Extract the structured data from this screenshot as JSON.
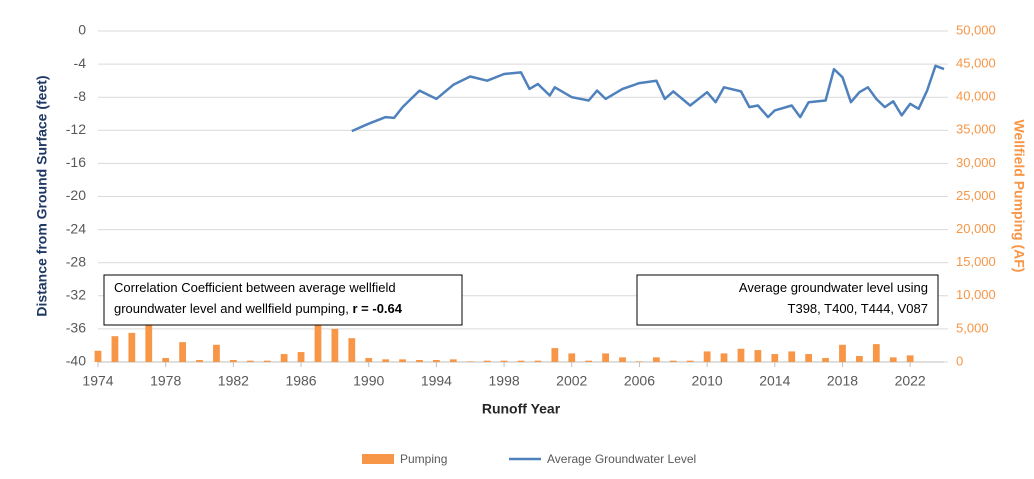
{
  "chart_data": {
    "type": "bar-line",
    "x_label": "Runoff Year",
    "y_label": "Distance from Ground Surface (feet)",
    "y2_label": "Wellfield Pumping (AF)",
    "xlim": [
      1974,
      2024
    ],
    "xticks": [
      1974,
      1978,
      1982,
      1986,
      1990,
      1994,
      1998,
      2002,
      2006,
      2010,
      2014,
      2018,
      2022
    ],
    "ylim": [
      -40,
      0
    ],
    "yticks": [
      0,
      -4,
      -8,
      -12,
      -16,
      -20,
      -24,
      -28,
      -32,
      -36,
      -40
    ],
    "y2lim": [
      0,
      50000
    ],
    "y2ticks": [
      0,
      {
        "value": 5000,
        "label": "5,000"
      },
      {
        "value": 10000,
        "label": "10,000"
      },
      {
        "value": 15000,
        "label": "15,000"
      },
      {
        "value": 20000,
        "label": "20,000"
      },
      {
        "value": 25000,
        "label": "25,000"
      },
      {
        "value": 30000,
        "label": "30,000"
      },
      {
        "value": 35000,
        "label": "35,000"
      },
      {
        "value": 40000,
        "label": "40,000"
      },
      {
        "value": 45000,
        "label": "45,000"
      },
      {
        "value": 50000,
        "label": "50,000"
      }
    ],
    "grid": true,
    "series": [
      {
        "name": "Pumping",
        "type": "bar",
        "axis": "y2",
        "color": "#f79646",
        "x": [
          1974,
          1975,
          1976,
          1977,
          1978,
          1979,
          1980,
          1981,
          1982,
          1983,
          1984,
          1985,
          1986,
          1987,
          1988,
          1989,
          1990,
          1991,
          1992,
          1993,
          1994,
          1995,
          1996,
          1997,
          1998,
          1999,
          2000,
          2001,
          2002,
          2003,
          2004,
          2005,
          2006,
          2007,
          2008,
          2009,
          2010,
          2011,
          2012,
          2013,
          2014,
          2015,
          2016,
          2017,
          2018,
          2019,
          2020,
          2021,
          2022
        ],
        "values": [
          1700,
          3900,
          4400,
          5600,
          600,
          3000,
          300,
          2600,
          300,
          200,
          200,
          1200,
          1500,
          6800,
          5000,
          3600,
          600,
          400,
          400,
          300,
          300,
          400,
          100,
          200,
          200,
          200,
          200,
          2100,
          1300,
          200,
          1300,
          700,
          100,
          700,
          200,
          200,
          1600,
          1300,
          2000,
          1800,
          1200,
          1600,
          1200,
          600,
          2600,
          900,
          2700,
          700,
          1000
        ]
      },
      {
        "name": "Average Groundwater Level",
        "type": "line",
        "color": "#4f81bd",
        "x": [
          1989,
          1990,
          1991,
          1991.5,
          1992,
          1993,
          1994,
          1995,
          1996,
          1997,
          1998,
          1999,
          1999.5,
          2000,
          2000.7,
          2001,
          2002,
          2003,
          2003.5,
          2004,
          2005,
          2006,
          2007,
          2007.5,
          2008,
          2009,
          2010,
          2010.5,
          2011,
          2012,
          2012.5,
          2013,
          2013.6,
          2014,
          2015,
          2015.5,
          2016,
          2017,
          2017.5,
          2018,
          2018.5,
          2019,
          2019.5,
          2020,
          2020.5,
          2021,
          2021.5,
          2022,
          2022.5,
          2023,
          2023.5,
          2024
        ],
        "values": [
          -12.1,
          -11.2,
          -10.4,
          -10.5,
          -9.2,
          -7.2,
          -8.2,
          -6.5,
          -5.5,
          -6.0,
          -5.2,
          -5.0,
          -7.0,
          -6.4,
          -7.8,
          -6.8,
          -8.0,
          -8.4,
          -7.2,
          -8.2,
          -7.0,
          -6.3,
          -6.0,
          -8.2,
          -7.3,
          -9.0,
          -7.4,
          -8.6,
          -6.8,
          -7.3,
          -9.2,
          -9.0,
          -10.4,
          -9.6,
          -9.0,
          -10.4,
          -8.6,
          -8.4,
          -4.6,
          -5.6,
          -8.6,
          -7.4,
          -6.8,
          -8.2,
          -9.2,
          -8.5,
          -10.2,
          -8.8,
          -9.4,
          -7.2,
          -4.2,
          -4.6
        ]
      }
    ],
    "annotations": [
      {
        "lines": [
          "Correlation Coefficient between average wellfield",
          "groundwater level and wellfield pumping, "
        ],
        "bold": "r = -0.64"
      },
      {
        "lines": [
          "Average groundwater level using",
          "T398, T400, T444, V087"
        ]
      }
    ]
  }
}
